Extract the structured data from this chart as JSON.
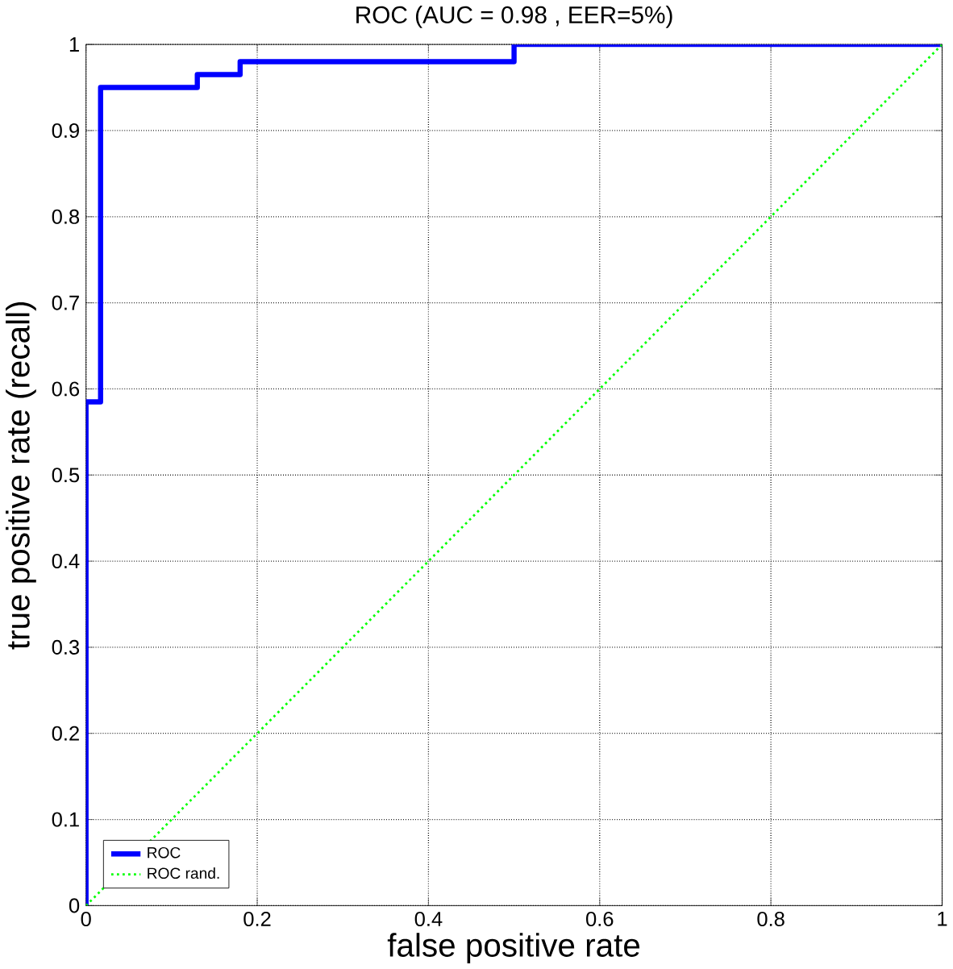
{
  "chart_data": {
    "type": "line",
    "title": "ROC (AUC = 0.98 , EER=5%)",
    "xlabel": "false positive rate",
    "ylabel": "true positive rate (recall)",
    "xlim": [
      0,
      1
    ],
    "ylim": [
      0,
      1
    ],
    "xticks": [
      0,
      0.2,
      0.4,
      0.6,
      0.8,
      1
    ],
    "yticks": [
      0,
      0.1,
      0.2,
      0.3,
      0.4,
      0.5,
      0.6,
      0.7,
      0.8,
      0.9,
      1
    ],
    "grid": true,
    "legend": "bottom left",
    "series": [
      {
        "name": "ROC",
        "color": "#0000ff",
        "line_style": "solid",
        "x": [
          0,
          0,
          0.017,
          0.017,
          0.13,
          0.13,
          0.18,
          0.18,
          0.5,
          0.5,
          1
        ],
        "values": [
          0,
          0.585,
          0.585,
          0.95,
          0.95,
          0.965,
          0.965,
          0.98,
          0.98,
          1,
          1
        ]
      },
      {
        "name": "ROC rand.",
        "color": "#00ff00",
        "line_style": "dotted",
        "x": [
          0,
          1
        ],
        "values": [
          0,
          1
        ]
      }
    ]
  }
}
